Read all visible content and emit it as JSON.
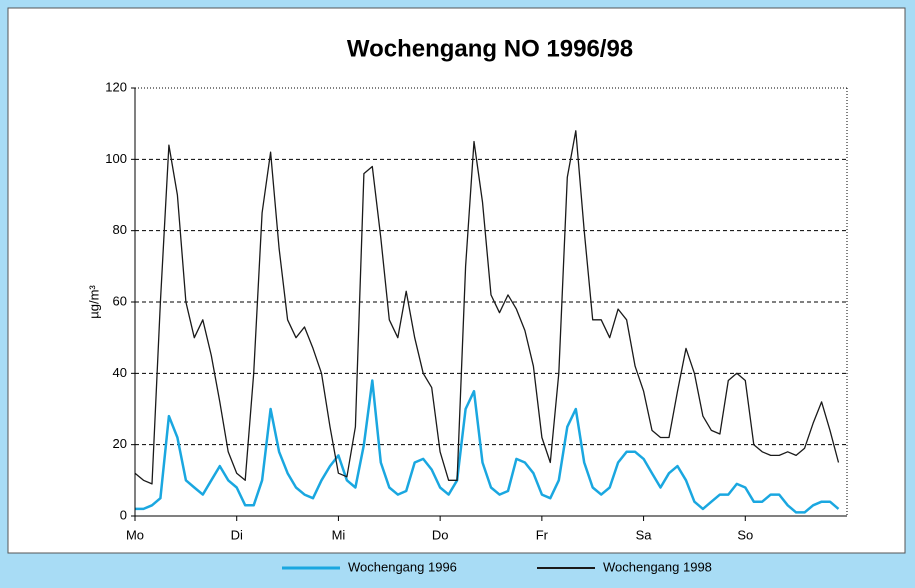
{
  "chart_data": {
    "type": "line",
    "title": "Wochengang NO 1996/98",
    "ylabel": "µg/m³",
    "xlim": [
      0,
      168
    ],
    "xticks": [
      {
        "value": 0,
        "label": "Mo"
      },
      {
        "value": 24,
        "label": "Di"
      },
      {
        "value": 48,
        "label": "Mi"
      },
      {
        "value": 72,
        "label": "Do"
      },
      {
        "value": 96,
        "label": "Fr"
      },
      {
        "value": 120,
        "label": "Sa"
      },
      {
        "value": 144,
        "label": "So"
      }
    ],
    "ylim": [
      0,
      120
    ],
    "yticks": [
      0,
      20,
      40,
      60,
      80,
      100,
      120
    ],
    "grid": true,
    "legend": "bottom",
    "x": [
      0,
      2,
      4,
      6,
      8,
      10,
      12,
      14,
      16,
      18,
      20,
      22,
      24,
      26,
      28,
      30,
      32,
      34,
      36,
      38,
      40,
      42,
      44,
      46,
      48,
      50,
      52,
      54,
      56,
      58,
      60,
      62,
      64,
      66,
      68,
      70,
      72,
      74,
      76,
      78,
      80,
      82,
      84,
      86,
      88,
      90,
      92,
      94,
      96,
      98,
      100,
      102,
      104,
      106,
      108,
      110,
      112,
      114,
      116,
      118,
      120,
      122,
      124,
      126,
      128,
      130,
      132,
      134,
      136,
      138,
      140,
      142,
      144,
      146,
      148,
      150,
      152,
      154,
      156,
      158,
      160,
      162,
      164,
      166
    ],
    "series": [
      {
        "name": "Wochengang 1996",
        "color": "#1aa7e0",
        "values": [
          2,
          2,
          3,
          5,
          28,
          22,
          10,
          8,
          6,
          10,
          14,
          10,
          8,
          3,
          3,
          10,
          30,
          18,
          12,
          8,
          6,
          5,
          10,
          14,
          17,
          10,
          8,
          20,
          38,
          15,
          8,
          6,
          7,
          15,
          16,
          13,
          8,
          6,
          10,
          30,
          35,
          15,
          8,
          6,
          7,
          16,
          15,
          12,
          6,
          5,
          10,
          25,
          30,
          15,
          8,
          6,
          8,
          15,
          18,
          18,
          16,
          12,
          8,
          12,
          14,
          10,
          4,
          2,
          4,
          6,
          6,
          9,
          8,
          4,
          4,
          6,
          6,
          3,
          1,
          1,
          3,
          4,
          4,
          2
        ]
      },
      {
        "name": "Wochengang 1998",
        "color": "#1a1a1a",
        "values": [
          12,
          10,
          9,
          60,
          104,
          90,
          60,
          50,
          55,
          45,
          32,
          18,
          12,
          10,
          40,
          85,
          102,
          75,
          55,
          50,
          53,
          47,
          40,
          25,
          12,
          11,
          25,
          96,
          98,
          78,
          55,
          50,
          63,
          50,
          40,
          36,
          18,
          10,
          10,
          70,
          105,
          88,
          62,
          57,
          62,
          58,
          52,
          42,
          22,
          15,
          40,
          95,
          108,
          80,
          55,
          55,
          50,
          58,
          55,
          42,
          35,
          24,
          22,
          22,
          35,
          47,
          40,
          28,
          24,
          23,
          38,
          40,
          38,
          20,
          18,
          17,
          17,
          18,
          17,
          19,
          26,
          32,
          24,
          15
        ]
      }
    ]
  }
}
